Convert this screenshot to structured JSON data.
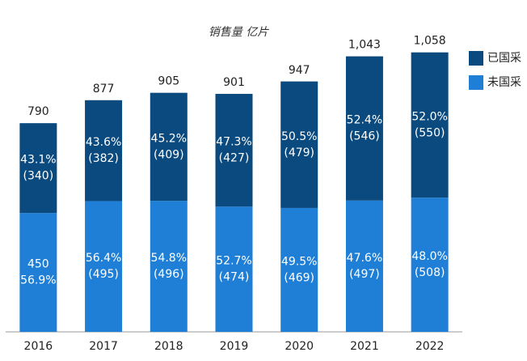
{
  "chart_data": {
    "type": "stacked-bar",
    "title": "销售量 亿片",
    "categories": [
      "2016",
      "2017",
      "2018",
      "2019",
      "2020",
      "2021",
      "2022"
    ],
    "series": [
      {
        "name": "未国采",
        "color": "#1f7fd6",
        "values": [
          450,
          495,
          496,
          474,
          469,
          497,
          508
        ],
        "value_labels": [
          [
            "450",
            "(56.9%)"
          ],
          [
            "56.4%",
            "(495)"
          ],
          [
            "54.8%",
            "(496)"
          ],
          [
            "52.7%",
            "(474)"
          ],
          [
            "49.5%",
            "(469)"
          ],
          [
            "47.6%",
            "(497)"
          ],
          [
            "48.0%",
            "(508)"
          ]
        ]
      },
      {
        "name": "已国采",
        "color": "#0b4a7e",
        "values": [
          340,
          382,
          409,
          427,
          479,
          546,
          550
        ],
        "value_labels": [
          [
            "43.1%",
            "(340)"
          ],
          [
            "43.6%",
            "(382)"
          ],
          [
            "45.2%",
            "(409)"
          ],
          [
            "47.3%",
            "(427)"
          ],
          [
            "50.5%",
            "(479)"
          ],
          [
            "52.4%",
            "(546)"
          ],
          [
            "52.0%",
            "(550)"
          ]
        ]
      }
    ],
    "totals": {
      "values": [
        790,
        877,
        905,
        901,
        947,
        1043,
        1058
      ],
      "labels": [
        "790",
        "877",
        "905",
        "901",
        "947",
        "1,043",
        "1,058"
      ]
    },
    "ylim": [
      0,
      1100
    ],
    "legend": "right"
  }
}
